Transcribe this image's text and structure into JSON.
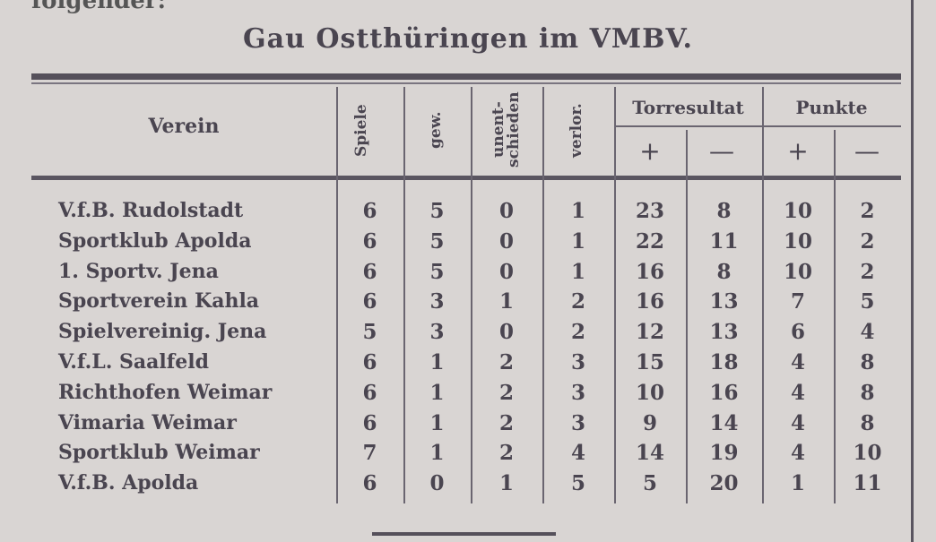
{
  "fragment_text": "folgender:",
  "title": "Gau Ostthüringen im VMBV.",
  "headers": {
    "club": "Verein",
    "games": "Spiele",
    "won": "gew.",
    "drawn": "unent-schieden",
    "lost": "verlor.",
    "goals": "Torresultat",
    "points": "Punkte",
    "plus": "+",
    "minus": "—"
  },
  "rows": [
    {
      "club": "V.f.B. Rudolstadt",
      "games": "6",
      "won": "5",
      "drawn": "0",
      "lost": "1",
      "goals_for": "23",
      "goals_against": "8",
      "points_for": "10",
      "points_against": "2"
    },
    {
      "club": "Sportklub Apolda",
      "games": "6",
      "won": "5",
      "drawn": "0",
      "lost": "1",
      "goals_for": "22",
      "goals_against": "11",
      "points_for": "10",
      "points_against": "2"
    },
    {
      "club": "1. Sportv. Jena",
      "games": "6",
      "won": "5",
      "drawn": "0",
      "lost": "1",
      "goals_for": "16",
      "goals_against": "8",
      "points_for": "10",
      "points_against": "2"
    },
    {
      "club": "Sportverein Kahla",
      "games": "6",
      "won": "3",
      "drawn": "1",
      "lost": "2",
      "goals_for": "16",
      "goals_against": "13",
      "points_for": "7",
      "points_against": "5"
    },
    {
      "club": "Spielvereinig. Jena",
      "games": "5",
      "won": "3",
      "drawn": "0",
      "lost": "2",
      "goals_for": "12",
      "goals_against": "13",
      "points_for": "6",
      "points_against": "4"
    },
    {
      "club": "V.f.L. Saalfeld",
      "games": "6",
      "won": "1",
      "drawn": "2",
      "lost": "3",
      "goals_for": "15",
      "goals_against": "18",
      "points_for": "4",
      "points_against": "8"
    },
    {
      "club": "Richthofen Weimar",
      "games": "6",
      "won": "1",
      "drawn": "2",
      "lost": "3",
      "goals_for": "10",
      "goals_against": "16",
      "points_for": "4",
      "points_against": "8"
    },
    {
      "club": "Vimaria Weimar",
      "games": "6",
      "won": "1",
      "drawn": "2",
      "lost": "3",
      "goals_for": "9",
      "goals_against": "14",
      "points_for": "4",
      "points_against": "8"
    },
    {
      "club": "Sportklub Weimar",
      "games": "7",
      "won": "1",
      "drawn": "2",
      "lost": "4",
      "goals_for": "14",
      "goals_against": "19",
      "points_for": "4",
      "points_against": "10"
    },
    {
      "club": "V.f.B. Apolda",
      "games": "6",
      "won": "0",
      "drawn": "1",
      "lost": "5",
      "goals_for": "5",
      "goals_against": "20",
      "points_for": "1",
      "points_against": "11"
    }
  ]
}
